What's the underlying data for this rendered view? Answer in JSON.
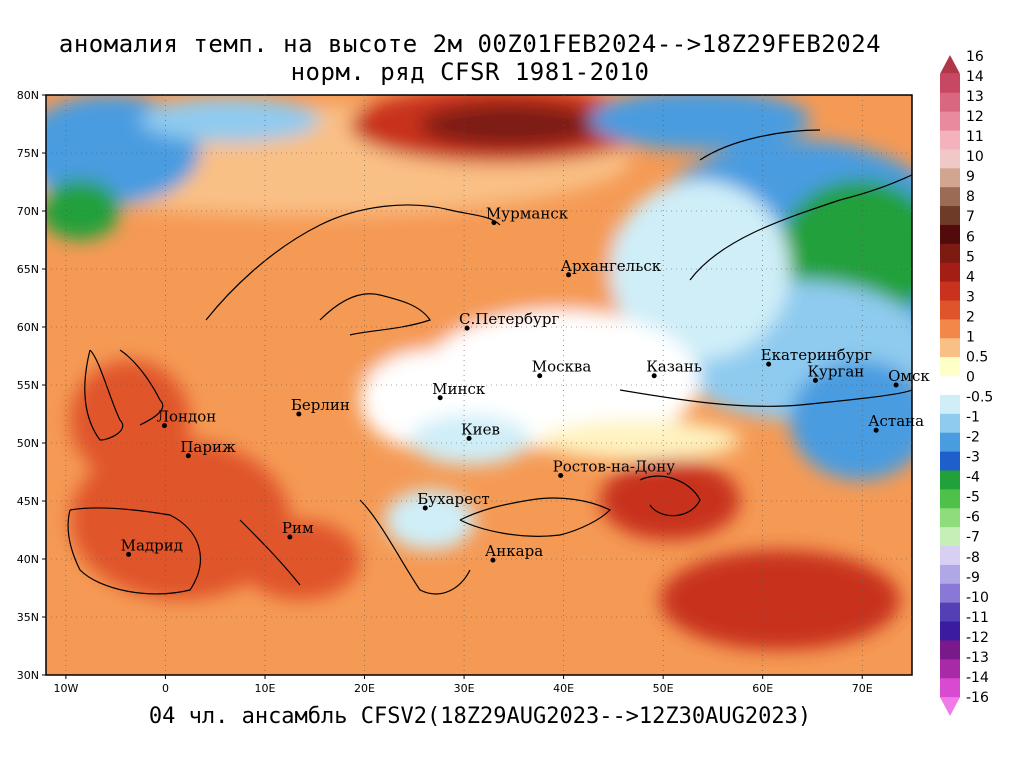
{
  "title_line1": "аномалия темп. на высоте 2м 00Z01FEB2024-->18Z29FEB2024",
  "title_line2": "норм. ряд CFSR 1981-2010",
  "footer": "04 чл. ансамбль CFSV2(18Z29AUG2023-->12Z30AUG2023)",
  "lat_ticks": [
    "80N",
    "75N",
    "70N",
    "65N",
    "60N",
    "55N",
    "50N",
    "45N",
    "40N",
    "35N",
    "30N"
  ],
  "lon_ticks": [
    "10W",
    "0",
    "10E",
    "20E",
    "30E",
    "40E",
    "50E",
    "60E",
    "70E"
  ],
  "colorbar": {
    "labels": [
      "16",
      "14",
      "13",
      "12",
      "11",
      "10",
      "9",
      "8",
      "7",
      "6",
      "5",
      "4",
      "3",
      "2",
      "1",
      "0.5",
      "0",
      "-0.5",
      "-1",
      "-2",
      "-3",
      "-4",
      "-5",
      "-6",
      "-7",
      "-8",
      "-9",
      "-10",
      "-11",
      "-12",
      "-13",
      "-14",
      "-16"
    ],
    "colors": [
      "#b2364a",
      "#c84863",
      "#d9677f",
      "#e98a9e",
      "#f3b2bd",
      "#f1c8c8",
      "#d1a58f",
      "#9c6b55",
      "#6e3b28",
      "#520a0a",
      "#7d1a12",
      "#a51e16",
      "#c8321e",
      "#e0542c",
      "#f2874a",
      "#f9c085",
      "#ffffc8",
      "#ffffff",
      "#cfeef8",
      "#8fcbef",
      "#4a9ce0",
      "#1f5fcc",
      "#22a03a",
      "#4ec14a",
      "#8fdc7c",
      "#c6efb8",
      "#d8d0f2",
      "#b0a8e6",
      "#8a78d6",
      "#5440b4",
      "#3a1ca0",
      "#7a1a8a",
      "#a82aa6",
      "#d84ad0",
      "#f07ae8"
    ]
  },
  "cities": [
    {
      "name": "Мурманск",
      "lon": 33,
      "lat": 69
    },
    {
      "name": "Архангельск",
      "lon": 40.5,
      "lat": 64.5
    },
    {
      "name": "С.Петербург",
      "lon": 30.3,
      "lat": 59.9
    },
    {
      "name": "Москва",
      "lon": 37.6,
      "lat": 55.8
    },
    {
      "name": "Казань",
      "lon": 49.1,
      "lat": 55.8
    },
    {
      "name": "Екатеринбург",
      "lon": 60.6,
      "lat": 56.8
    },
    {
      "name": "Курган",
      "lon": 65.3,
      "lat": 55.4
    },
    {
      "name": "Омск",
      "lon": 73.4,
      "lat": 55
    },
    {
      "name": "Минск",
      "lon": 27.6,
      "lat": 53.9
    },
    {
      "name": "Берлин",
      "lon": 13.4,
      "lat": 52.5
    },
    {
      "name": "Лондон",
      "lon": -0.1,
      "lat": 51.5
    },
    {
      "name": "Париж",
      "lon": 2.3,
      "lat": 48.9
    },
    {
      "name": "Киев",
      "lon": 30.5,
      "lat": 50.4
    },
    {
      "name": "Астана",
      "lon": 71.4,
      "lat": 51.1
    },
    {
      "name": "Ростов-на-Дону",
      "lon": 39.7,
      "lat": 47.2
    },
    {
      "name": "Бухарест",
      "lon": 26.1,
      "lat": 44.4
    },
    {
      "name": "Рим",
      "lon": 12.5,
      "lat": 41.9
    },
    {
      "name": "Мадрид",
      "lon": -3.7,
      "lat": 40.4
    },
    {
      "name": "Анкара",
      "lon": 32.9,
      "lat": 39.9
    }
  ],
  "map_extent": {
    "lon_min": -12,
    "lon_max": 75,
    "lat_min": 30,
    "lat_max": 80
  }
}
